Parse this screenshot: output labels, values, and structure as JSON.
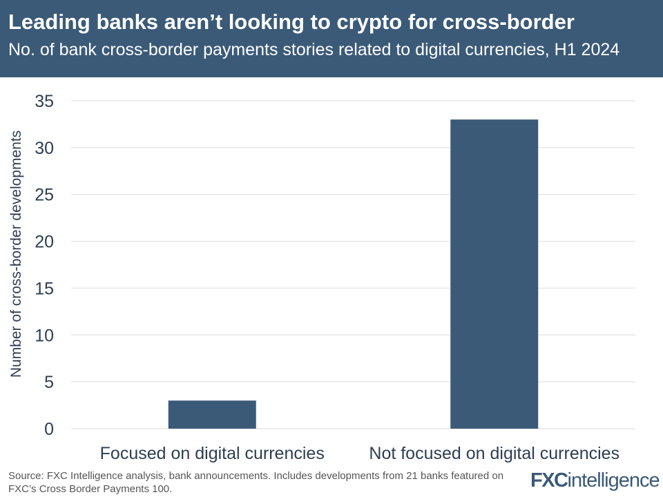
{
  "header": {
    "title": "Leading banks aren’t looking to crypto for cross-border",
    "subtitle": "No. of bank cross-border payments stories related to digital currencies, H1 2024"
  },
  "chart_data": {
    "type": "bar",
    "title": "Leading banks aren’t looking to crypto for cross-border",
    "subtitle": "No. of bank cross-border payments stories related to digital currencies, H1 2024",
    "categories": [
      "Focused on digital currencies",
      "Not focused on digital currencies"
    ],
    "values": [
      3,
      33
    ],
    "xlabel": "",
    "ylabel": "Number of cross-border developments",
    "ylim": [
      0,
      35
    ],
    "yticks": [
      0,
      5,
      10,
      15,
      20,
      25,
      30,
      35
    ],
    "grid": true,
    "bar_color": "#3b5a78"
  },
  "footer": {
    "source": "Source: FXC Intelligence analysis, bank announcements. Includes developments from 21 banks featured on FXC’s Cross Border Payments 100.",
    "logo_text": "FXCintelligence"
  }
}
